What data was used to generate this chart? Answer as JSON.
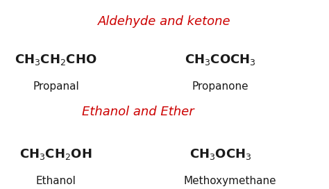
{
  "bg_color": "#ffffff",
  "title1": "Aldehyde and ketone",
  "title2": "Ethanol and Ether",
  "title_color": "#cc0000",
  "text_color": "#1a1a1a",
  "title_fontsize": 13,
  "formula_fontsize": 13,
  "name_fontsize": 11,
  "items": [
    {
      "formula_display": "CH$_3$CH$_2$CHO",
      "name": "Propanal",
      "fx": 0.17,
      "fy": 0.72,
      "nx": 0.17,
      "ny": 0.57
    },
    {
      "formula_display": "CH$_3$COCH$_3$",
      "name": "Propanone",
      "fx": 0.67,
      "fy": 0.72,
      "nx": 0.67,
      "ny": 0.57
    },
    {
      "formula_display": "CH$_3$CH$_2$OH",
      "name": "Ethanol",
      "fx": 0.17,
      "fy": 0.22,
      "nx": 0.17,
      "ny": 0.07
    },
    {
      "formula_display": "CH$_3$OCH$_3$",
      "name": "Methoxymethane",
      "fx": 0.67,
      "fy": 0.22,
      "nx": 0.7,
      "ny": 0.07
    }
  ]
}
